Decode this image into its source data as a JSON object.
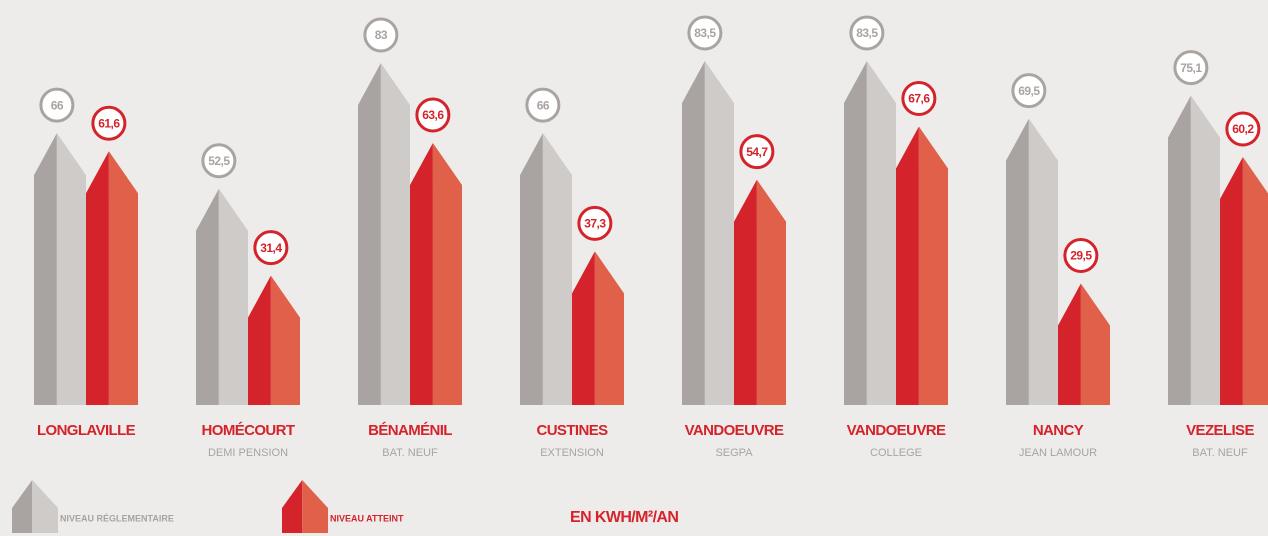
{
  "chart_data": {
    "type": "bar",
    "categories": [
      "LONGLAVILLE",
      "HOMÉCOURT",
      "BÉNAMÉNIL",
      "CUSTINES",
      "VANDOEUVRE",
      "VANDOEUVRE",
      "NANCY",
      "VEZELISE"
    ],
    "subcategories": [
      null,
      "DEMI PENSION",
      "BAT. NEUF",
      "EXTENSION",
      "SEGPA",
      "COLLEGE",
      "JEAN LAMOUR",
      "BAT. NEUF"
    ],
    "series": [
      {
        "name": "NIVEAU RÉGLEMENTAIRE",
        "color": "#a9a4a1",
        "light": "#cfcbc8",
        "values": [
          66,
          52.5,
          83,
          66,
          83.5,
          83.5,
          69.5,
          75.1
        ],
        "value_labels": [
          "66",
          "52,5",
          "83",
          "66",
          "83,5",
          "83,5",
          "69,5",
          "75,1"
        ]
      },
      {
        "name": "NIVEAU ATTEINT",
        "color": "#d4232a",
        "light": "#e0604a",
        "values": [
          61.6,
          31.4,
          63.6,
          37.3,
          54.7,
          67.6,
          29.5,
          60.2
        ],
        "value_labels": [
          "61,6",
          "31,4",
          "63,6",
          "37,3",
          "54,7",
          "67,6",
          "29,5",
          "60,2"
        ]
      }
    ],
    "unit": "EN KWH/M²/AN"
  }
}
